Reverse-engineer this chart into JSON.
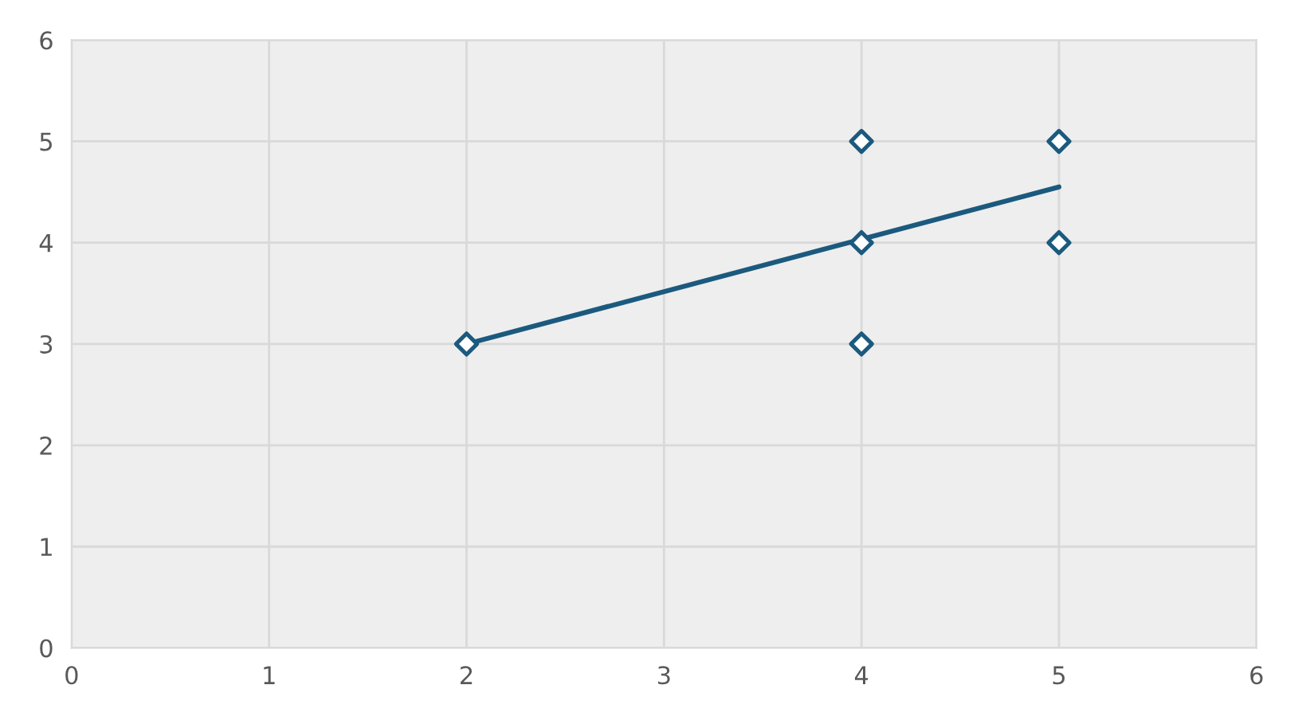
{
  "chart_data": {
    "type": "scatter",
    "marker": "diamond",
    "grid": true,
    "xlim": [
      0,
      6
    ],
    "ylim": [
      0,
      6
    ],
    "xticks": [
      0,
      1,
      2,
      3,
      4,
      5,
      6
    ],
    "yticks": [
      0,
      1,
      2,
      3,
      4,
      5,
      6
    ],
    "series": [
      {
        "color": "#1b5a7e",
        "x": [
          2,
          4,
          4,
          4,
          5,
          5
        ],
        "values": [
          3,
          5,
          4,
          3,
          5,
          4
        ]
      },
      {
        "type": "line",
        "color": "#1b5a7e",
        "marker": "none",
        "line_style": "solid",
        "x": [
          2,
          5
        ],
        "values": [
          3,
          4.55
        ]
      }
    ]
  }
}
